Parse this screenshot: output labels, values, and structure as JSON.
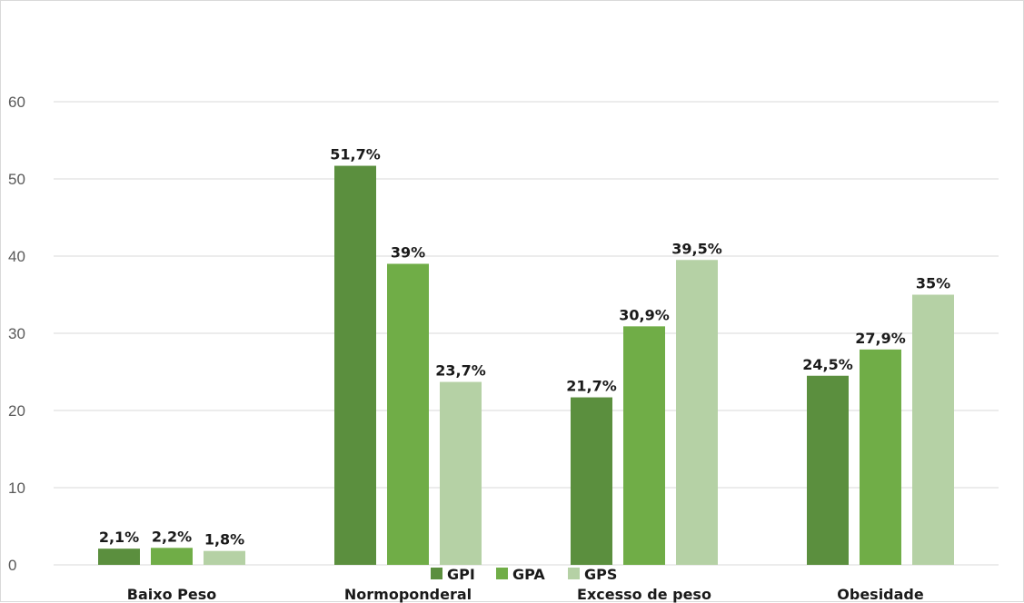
{
  "chart_data": {
    "type": "bar",
    "title": "",
    "xlabel": "",
    "ylabel": "",
    "ylim": [
      0,
      60
    ],
    "yticks": [
      0,
      10,
      20,
      30,
      40,
      50,
      60
    ],
    "grid": true,
    "legend_position": "bottom",
    "categories": [
      "Baixo Peso",
      "Normoponderal",
      "Excesso de peso",
      "Obesidade"
    ],
    "series": [
      {
        "name": "GPI",
        "color": "#5b8f3e",
        "values": [
          2.1,
          51.7,
          21.7,
          24.5
        ],
        "labels": [
          "2,1%",
          "51,7%",
          "21,7%",
          "24,5%"
        ]
      },
      {
        "name": "GPA",
        "color": "#70ad47",
        "values": [
          2.2,
          39,
          30.9,
          27.9
        ],
        "labels": [
          "2,2%",
          "39%",
          "30,9%",
          "27,9%"
        ]
      },
      {
        "name": "GPS",
        "color": "#b5d1a5",
        "values": [
          1.8,
          23.7,
          39.5,
          35
        ],
        "labels": [
          "1,8%",
          "23,7%",
          "39,5%",
          "35%"
        ]
      }
    ]
  }
}
